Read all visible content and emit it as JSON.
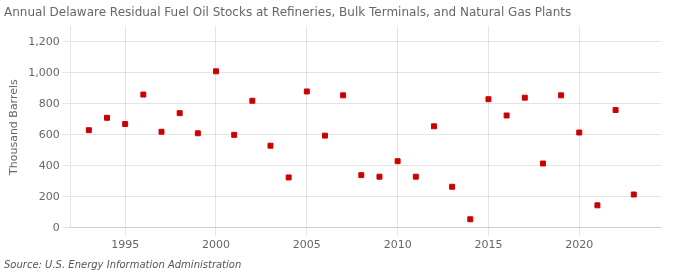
{
  "chart_data": {
    "type": "scatter",
    "title": "Annual Delaware Residual Fuel Oil Stocks at Refineries, Bulk Terminals, and Natural Gas Plants",
    "ylabel": "Thousand Barrels",
    "source": "Source: U.S. Energy Information Administration",
    "x": [
      1993,
      1994,
      1995,
      1996,
      1997,
      1998,
      1999,
      2000,
      2001,
      2002,
      2003,
      2004,
      2005,
      2006,
      2007,
      2008,
      2009,
      2010,
      2011,
      2012,
      2013,
      2014,
      2015,
      2016,
      2017,
      2018,
      2019,
      2020,
      2021,
      2022,
      2023
    ],
    "values": [
      630,
      710,
      670,
      860,
      620,
      740,
      610,
      1010,
      600,
      820,
      530,
      325,
      880,
      595,
      855,
      340,
      330,
      430,
      330,
      655,
      265,
      55,
      830,
      725,
      840,
      415,
      855,
      615,
      145,
      760,
      215
    ],
    "color": "#cc0000",
    "marker": "square",
    "xlim": [
      1992,
      2024.5
    ],
    "ylim": [
      0,
      1300
    ],
    "xticks": [
      1995,
      2000,
      2005,
      2010,
      2015,
      2020
    ],
    "yticks": [
      0,
      200,
      400,
      600,
      800,
      {
        "value": 1000,
        "label": "1,000"
      },
      {
        "value": 1200,
        "label": "1,200"
      }
    ],
    "grid": true
  }
}
